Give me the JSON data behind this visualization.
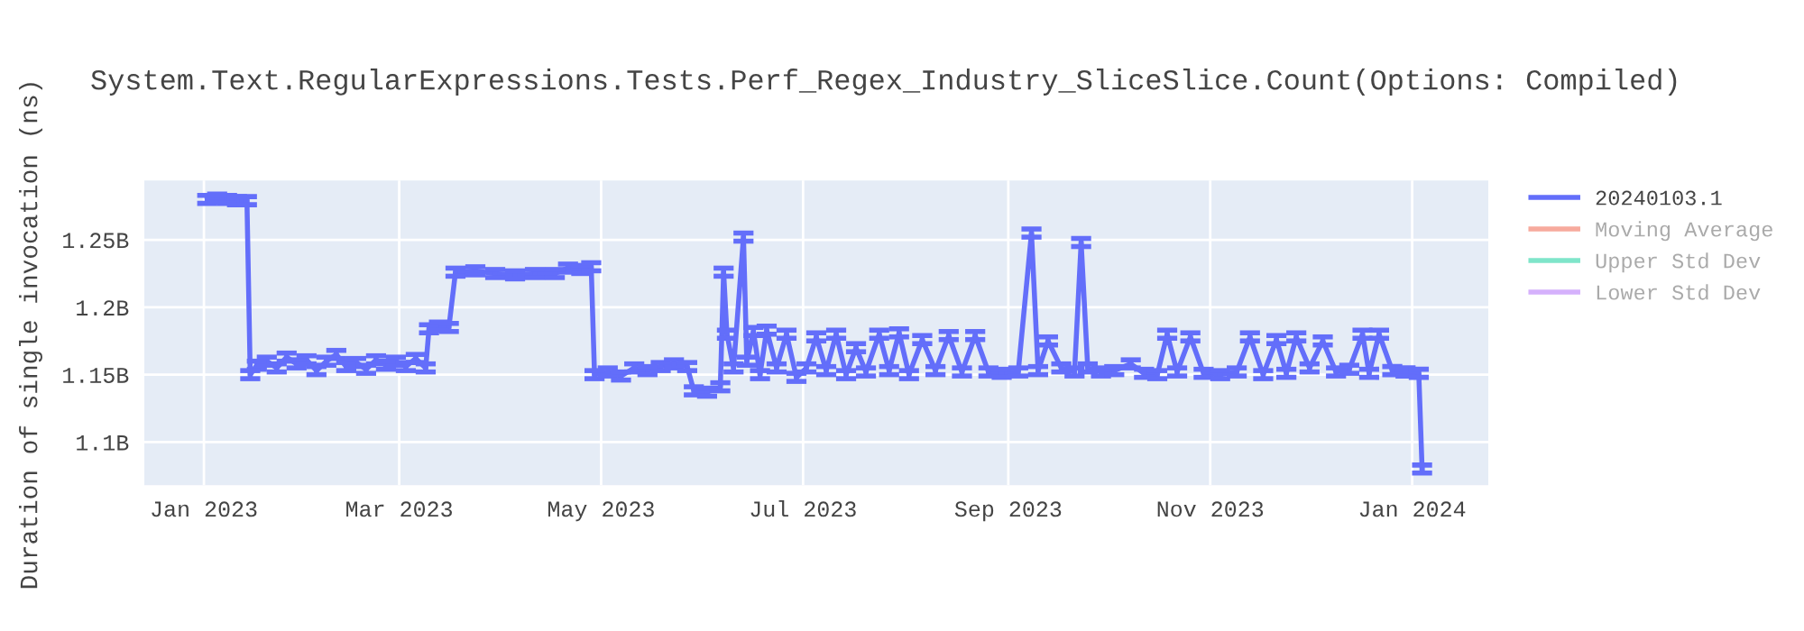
{
  "chart_data": {
    "type": "line",
    "title": "System.Text.RegularExpressions.Tests.Perf_Regex_Industry_SliceSlice.Count(Options: Compiled)",
    "ylabel": "Duration of single invocation (ns)",
    "x": [
      "2023-01-02",
      "2023-01-05",
      "2023-01-08",
      "2023-01-11",
      "2023-01-14",
      "2023-01-15",
      "2023-01-17",
      "2023-01-20",
      "2023-01-23",
      "2023-01-26",
      "2023-01-29",
      "2023-02-01",
      "2023-02-04",
      "2023-02-07",
      "2023-02-10",
      "2023-02-13",
      "2023-02-16",
      "2023-02-19",
      "2023-02-22",
      "2023-02-25",
      "2023-02-28",
      "2023-03-03",
      "2023-03-06",
      "2023-03-09",
      "2023-03-10",
      "2023-03-13",
      "2023-03-16",
      "2023-03-18",
      "2023-03-24",
      "2023-03-30",
      "2023-04-05",
      "2023-04-11",
      "2023-04-17",
      "2023-04-21",
      "2023-04-25",
      "2023-04-28",
      "2023-04-29",
      "2023-05-03",
      "2023-05-07",
      "2023-05-11",
      "2023-05-15",
      "2023-05-19",
      "2023-05-23",
      "2023-05-27",
      "2023-05-29",
      "2023-06-02",
      "2023-06-06",
      "2023-06-07",
      "2023-06-08",
      "2023-06-10",
      "2023-06-13",
      "2023-06-14",
      "2023-06-16",
      "2023-06-18",
      "2023-06-20",
      "2023-06-23",
      "2023-06-26",
      "2023-06-29",
      "2023-07-02",
      "2023-07-05",
      "2023-07-08",
      "2023-07-11",
      "2023-07-14",
      "2023-07-17",
      "2023-07-20",
      "2023-07-24",
      "2023-07-27",
      "2023-07-30",
      "2023-08-02",
      "2023-08-06",
      "2023-08-10",
      "2023-08-14",
      "2023-08-18",
      "2023-08-22",
      "2023-08-26",
      "2023-08-30",
      "2023-09-04",
      "2023-09-08",
      "2023-09-10",
      "2023-09-13",
      "2023-09-17",
      "2023-09-21",
      "2023-09-23",
      "2023-09-25",
      "2023-09-29",
      "2023-10-03",
      "2023-10-08",
      "2023-10-12",
      "2023-10-16",
      "2023-10-19",
      "2023-10-22",
      "2023-10-26",
      "2023-10-30",
      "2023-11-04",
      "2023-11-09",
      "2023-11-13",
      "2023-11-17",
      "2023-11-21",
      "2023-11-24",
      "2023-11-27",
      "2023-12-01",
      "2023-12-05",
      "2023-12-09",
      "2023-12-13",
      "2023-12-17",
      "2023-12-19",
      "2023-12-22",
      "2023-12-26",
      "2023-12-30",
      "2024-01-03",
      "2024-01-04"
    ],
    "series": [
      {
        "name": "20240103.1",
        "color": "#636efa",
        "values": [
          1280000000,
          1281000000,
          1280000000,
          1279000000,
          1279000000,
          1150000000,
          1157000000,
          1160000000,
          1155000000,
          1163000000,
          1158000000,
          1161000000,
          1153000000,
          1160000000,
          1165000000,
          1156000000,
          1159000000,
          1154000000,
          1161000000,
          1157000000,
          1160000000,
          1156000000,
          1162000000,
          1155000000,
          1184000000,
          1186000000,
          1185000000,
          1226000000,
          1227000000,
          1225000000,
          1224000000,
          1225000000,
          1225000000,
          1229000000,
          1228000000,
          1230000000,
          1150000000,
          1152000000,
          1149000000,
          1155000000,
          1153000000,
          1156000000,
          1158000000,
          1156000000,
          1138000000,
          1137000000,
          1141000000,
          1226000000,
          1180000000,
          1155000000,
          1252000000,
          1160000000,
          1182000000,
          1150000000,
          1183000000,
          1155000000,
          1180000000,
          1148000000,
          1155000000,
          1178000000,
          1153000000,
          1180000000,
          1150000000,
          1170000000,
          1152000000,
          1180000000,
          1153000000,
          1181000000,
          1150000000,
          1176000000,
          1153000000,
          1179000000,
          1152000000,
          1179000000,
          1152000000,
          1151000000,
          1152000000,
          1255000000,
          1153000000,
          1175000000,
          1155000000,
          1152000000,
          1248000000,
          1155000000,
          1152000000,
          1153000000,
          1158000000,
          1151000000,
          1150000000,
          1180000000,
          1152000000,
          1178000000,
          1151000000,
          1150000000,
          1152000000,
          1178000000,
          1150000000,
          1176000000,
          1151000000,
          1178000000,
          1155000000,
          1175000000,
          1152000000,
          1154000000,
          1180000000,
          1151000000,
          1180000000,
          1153000000,
          1152000000,
          1151000000,
          1080000000
        ],
        "errors": [
          3000000,
          3000000,
          3000000,
          3000000,
          3000000,
          3000000,
          3000000,
          3000000,
          3000000,
          3000000,
          3000000,
          3000000,
          3000000,
          3000000,
          3000000,
          3000000,
          3000000,
          3000000,
          3000000,
          3000000,
          3000000,
          3000000,
          3000000,
          3000000,
          3000000,
          3000000,
          3000000,
          3000000,
          3000000,
          3000000,
          3000000,
          3000000,
          3000000,
          3000000,
          3000000,
          3000000,
          3000000,
          3000000,
          3000000,
          3000000,
          3000000,
          3000000,
          3000000,
          3000000,
          3000000,
          3000000,
          3000000,
          3000000,
          3000000,
          3000000,
          3000000,
          3000000,
          3000000,
          3000000,
          3000000,
          3000000,
          3000000,
          3000000,
          3000000,
          3000000,
          3000000,
          3000000,
          3000000,
          3000000,
          3000000,
          3000000,
          3000000,
          3000000,
          3000000,
          3000000,
          3000000,
          3000000,
          3000000,
          3000000,
          3000000,
          3000000,
          3000000,
          3000000,
          3000000,
          3000000,
          3000000,
          3000000,
          3000000,
          3000000,
          3000000,
          3000000,
          3000000,
          3000000,
          3000000,
          3000000,
          3000000,
          3000000,
          3000000,
          3000000,
          3000000,
          3000000,
          3000000,
          3000000,
          3000000,
          3000000,
          3000000,
          3000000,
          3000000,
          3000000,
          3000000,
          3000000,
          3000000,
          3000000,
          3000000,
          3000000,
          3000000
        ]
      },
      {
        "name": "Moving Average",
        "color": "#ef553b",
        "values": [
          null,
          null,
          null,
          null,
          null,
          null,
          null,
          null,
          null,
          null,
          null,
          null,
          null,
          null,
          null,
          null,
          null,
          null,
          null,
          null,
          null,
          null,
          null,
          null,
          null,
          null,
          null,
          null,
          null,
          null,
          null,
          null,
          null,
          null,
          null,
          null,
          null,
          null,
          null,
          null,
          null,
          null,
          null,
          null,
          null,
          null,
          null,
          null,
          null,
          null,
          null,
          null,
          null,
          null,
          null,
          null,
          null,
          null,
          null,
          null,
          null,
          null,
          null,
          null,
          null,
          null,
          null,
          null,
          null,
          null,
          null,
          null,
          null,
          null,
          null,
          null,
          null,
          null,
          null,
          null,
          null,
          null,
          null,
          null,
          null,
          null,
          null,
          null,
          null,
          null,
          null,
          null,
          null,
          null,
          null,
          null,
          null,
          null,
          null,
          null,
          null,
          null,
          null,
          null,
          null,
          null,
          null,
          null,
          null,
          null,
          null
        ]
      },
      {
        "name": "Upper Std Dev",
        "color": "#00cc96",
        "values": [
          null,
          null,
          null,
          null,
          null,
          null,
          null,
          null,
          null,
          null,
          null,
          null,
          null,
          null,
          null,
          null,
          null,
          null,
          null,
          null,
          null,
          null,
          null,
          null,
          null,
          null,
          null,
          null,
          null,
          null,
          null,
          null,
          null,
          null,
          null,
          null,
          null,
          null,
          null,
          null,
          null,
          null,
          null,
          null,
          null,
          null,
          null,
          null,
          null,
          null,
          null,
          null,
          null,
          null,
          null,
          null,
          null,
          null,
          null,
          null,
          null,
          null,
          null,
          null,
          null,
          null,
          null,
          null,
          null,
          null,
          null,
          null,
          null,
          null,
          null,
          null,
          null,
          null,
          null,
          null,
          null,
          null,
          null,
          null,
          null,
          null,
          null,
          null,
          null,
          null,
          null,
          null,
          null,
          null,
          null,
          null,
          null,
          null,
          null,
          null,
          null,
          null,
          null,
          null,
          null,
          null,
          null,
          null,
          null,
          null,
          null
        ]
      },
      {
        "name": "Lower Std Dev",
        "color": "#ab63fa",
        "values": [
          null,
          null,
          null,
          null,
          null,
          null,
          null,
          null,
          null,
          null,
          null,
          null,
          null,
          null,
          null,
          null,
          null,
          null,
          null,
          null,
          null,
          null,
          null,
          null,
          null,
          null,
          null,
          null,
          null,
          null,
          null,
          null,
          null,
          null,
          null,
          null,
          null,
          null,
          null,
          null,
          null,
          null,
          null,
          null,
          null,
          null,
          null,
          null,
          null,
          null,
          null,
          null,
          null,
          null,
          null,
          null,
          null,
          null,
          null,
          null,
          null,
          null,
          null,
          null,
          null,
          null,
          null,
          null,
          null,
          null,
          null,
          null,
          null,
          null,
          null,
          null,
          null,
          null,
          null,
          null,
          null,
          null,
          null,
          null,
          null,
          null,
          null,
          null,
          null,
          null,
          null,
          null,
          null,
          null,
          null,
          null,
          null,
          null,
          null,
          null,
          null,
          null,
          null,
          null,
          null,
          null,
          null,
          null,
          null,
          null,
          null
        ]
      }
    ],
    "xlim": [
      "2022-12-14",
      "2024-01-24"
    ],
    "xticks": [
      {
        "value": "2023-01-01",
        "label": "Jan 2023"
      },
      {
        "value": "2023-03-01",
        "label": "Mar 2023"
      },
      {
        "value": "2023-05-01",
        "label": "May 2023"
      },
      {
        "value": "2023-07-01",
        "label": "Jul 2023"
      },
      {
        "value": "2023-09-01",
        "label": "Sep 2023"
      },
      {
        "value": "2023-11-01",
        "label": "Nov 2023"
      },
      {
        "value": "2024-01-01",
        "label": "Jan 2024"
      }
    ],
    "ylim": [
      1068000000,
      1294000000
    ],
    "yticks": [
      {
        "value": 1100000000,
        "label": "1.1B"
      },
      {
        "value": 1150000000,
        "label": "1.15B"
      },
      {
        "value": 1200000000,
        "label": "1.2B"
      },
      {
        "value": 1250000000,
        "label": "1.25B"
      }
    ],
    "grid": true,
    "legend": "top right",
    "marker": "none",
    "line_style": "solid"
  }
}
